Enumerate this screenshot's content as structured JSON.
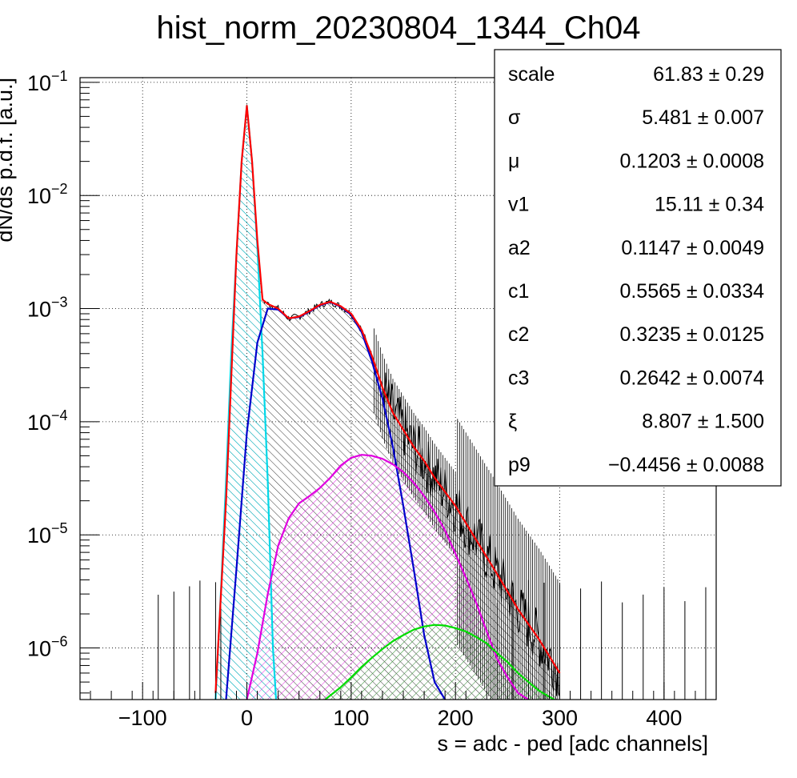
{
  "chart_data": {
    "type": "line",
    "title": "hist_norm_20230804_1344_Ch04",
    "xlabel": "s = adc - ped [adc channels]",
    "ylabel": "dN/ds p.d.f. [a.u.]",
    "xlim": [
      -160,
      450
    ],
    "ylim": [
      3.5e-07,
      0.11
    ],
    "y_scale": "log",
    "grid": true,
    "x_ticks": [
      {
        "value": -100,
        "label": "−100"
      },
      {
        "value": 0,
        "label": "0"
      },
      {
        "value": 100,
        "label": "100"
      },
      {
        "value": 200,
        "label": "200"
      },
      {
        "value": 300,
        "label": "300"
      },
      {
        "value": 400,
        "label": "400"
      }
    ],
    "y_ticks": [
      {
        "value": 0.1,
        "base": "10",
        "exp": "−1"
      },
      {
        "value": 0.01,
        "base": "10",
        "exp": "−2"
      },
      {
        "value": 0.001,
        "base": "10",
        "exp": "−3"
      },
      {
        "value": 0.0001,
        "base": "10",
        "exp": "−4"
      },
      {
        "value": 1e-05,
        "base": "10",
        "exp": "−5"
      },
      {
        "value": 1e-06,
        "base": "10",
        "exp": "−6"
      }
    ],
    "series": [
      {
        "key": "data",
        "color": "#000000",
        "style": "histogram with error bars, hatched fill",
        "x": [
          -30,
          -20,
          -10,
          -5,
          0,
          5,
          10,
          15,
          20,
          30,
          40,
          50,
          60,
          70,
          80,
          90,
          100,
          110,
          120,
          130,
          140,
          150,
          160,
          170,
          180,
          200,
          220,
          240,
          260,
          280,
          300
        ],
        "y": [
          4e-07,
          2e-05,
          0.003,
          0.02,
          0.062,
          0.02,
          0.004,
          0.0012,
          0.0011,
          0.001,
          0.00082,
          0.00085,
          0.00095,
          0.00108,
          0.00115,
          0.00105,
          0.0009,
          0.00065,
          0.00038,
          0.0002,
          0.00012,
          8.5e-05,
          6e-05,
          4.5e-05,
          3.2e-05,
          1.8e-05,
          9e-06,
          4.5e-06,
          2.2e-06,
          1.2e-06,
          6e-07
        ]
      },
      {
        "key": "total_fit",
        "color": "#ff0000",
        "x": [
          -30,
          -20,
          -10,
          -5,
          0,
          5,
          10,
          15,
          20,
          30,
          40,
          50,
          60,
          70,
          80,
          90,
          100,
          110,
          120,
          130,
          140,
          150,
          160,
          170,
          180,
          200,
          220,
          240,
          260,
          280,
          300
        ],
        "y": [
          4e-07,
          2e-05,
          0.003,
          0.02,
          0.062,
          0.02,
          0.004,
          0.0012,
          0.0011,
          0.001,
          0.00082,
          0.00085,
          0.00095,
          0.00108,
          0.00115,
          0.00105,
          0.0009,
          0.00065,
          0.00038,
          0.0002,
          0.00012,
          8.5e-05,
          6e-05,
          4.5e-05,
          3.2e-05,
          1.8e-05,
          9e-06,
          4.5e-06,
          2.2e-06,
          1.2e-06,
          6e-07
        ]
      },
      {
        "key": "pedestal",
        "color": "#00d8e8",
        "hatch": "cyan",
        "x": [
          -30,
          -25,
          -20,
          -15,
          -10,
          -5,
          0,
          5,
          10,
          15,
          20,
          25,
          28
        ],
        "y": [
          3.5e-07,
          3e-06,
          3e-05,
          0.0004,
          0.003,
          0.02,
          0.062,
          0.02,
          0.0035,
          0.0004,
          3e-05,
          1e-06,
          3.5e-07
        ]
      },
      {
        "key": "1pe",
        "color": "#0000cc",
        "hatch": "black",
        "x": [
          -20,
          -10,
          0,
          10,
          20,
          30,
          40,
          50,
          60,
          70,
          80,
          90,
          100,
          110,
          120,
          130,
          140,
          150,
          160,
          170,
          180,
          190
        ],
        "y": [
          3.5e-07,
          5e-06,
          8e-05,
          0.0005,
          0.001,
          0.00098,
          0.00082,
          0.00084,
          0.00094,
          0.00107,
          0.00114,
          0.00104,
          0.00088,
          0.00062,
          0.00034,
          0.00016,
          6e-05,
          1.8e-05,
          5e-06,
          1.3e-06,
          5e-07,
          3.5e-07
        ]
      },
      {
        "key": "2pe",
        "color": "#e000e0",
        "hatch": "magenta",
        "x": [
          0,
          10,
          20,
          30,
          40,
          50,
          60,
          70,
          80,
          90,
          100,
          110,
          120,
          130,
          140,
          150,
          160,
          170,
          180,
          190,
          200,
          210,
          220,
          230,
          240,
          250,
          260,
          270
        ],
        "y": [
          3.5e-07,
          9e-07,
          3e-06,
          8e-06,
          1.4e-05,
          1.9e-05,
          2.2e-05,
          2.6e-05,
          3.2e-05,
          4.1e-05,
          4.8e-05,
          5.1e-05,
          5e-05,
          4.7e-05,
          4.2e-05,
          3.6e-05,
          2.9e-05,
          2.2e-05,
          1.6e-05,
          1.1e-05,
          6.8e-06,
          4.2e-06,
          2.5e-06,
          1.4e-06,
          8e-07,
          5.5e-07,
          4e-07,
          3.5e-07
        ]
      },
      {
        "key": "3pe",
        "color": "#00dd00",
        "hatch": "green",
        "x": [
          75,
          90,
          100,
          110,
          120,
          130,
          140,
          150,
          160,
          170,
          180,
          190,
          200,
          210,
          220,
          230,
          240,
          250,
          260,
          270,
          280,
          290,
          295
        ],
        "y": [
          3.5e-07,
          4.5e-07,
          5.5e-07,
          6.8e-07,
          8.2e-07,
          9.8e-07,
          1.15e-06,
          1.3e-06,
          1.45e-06,
          1.55e-06,
          1.6e-06,
          1.58e-06,
          1.5e-06,
          1.4e-06,
          1.25e-06,
          1.1e-06,
          9e-07,
          7.5e-07,
          6e-07,
          5e-07,
          4.2e-07,
          3.7e-07,
          3.5e-07
        ]
      }
    ],
    "legend": "top-right",
    "stats": [
      {
        "name": "scale",
        "value": "61.83 ± 0.29"
      },
      {
        "name": "σ",
        "value": "5.481 ± 0.007"
      },
      {
        "name": "μ",
        "value": "0.1203 ± 0.0008"
      },
      {
        "name": "v1",
        "value": "15.11 ± 0.34"
      },
      {
        "name": "a2",
        "value": "0.1147 ± 0.0049"
      },
      {
        "name": "c1",
        "value": "0.5565 ± 0.0334"
      },
      {
        "name": "c2",
        "value": "0.3235 ± 0.0125"
      },
      {
        "name": "c3",
        "value": "0.2642 ± 0.0074"
      },
      {
        "name": "ξ",
        "value": "8.807 ± 1.500"
      },
      {
        "name": "p9",
        "value": "−0.4456 ± 0.0088"
      }
    ]
  }
}
